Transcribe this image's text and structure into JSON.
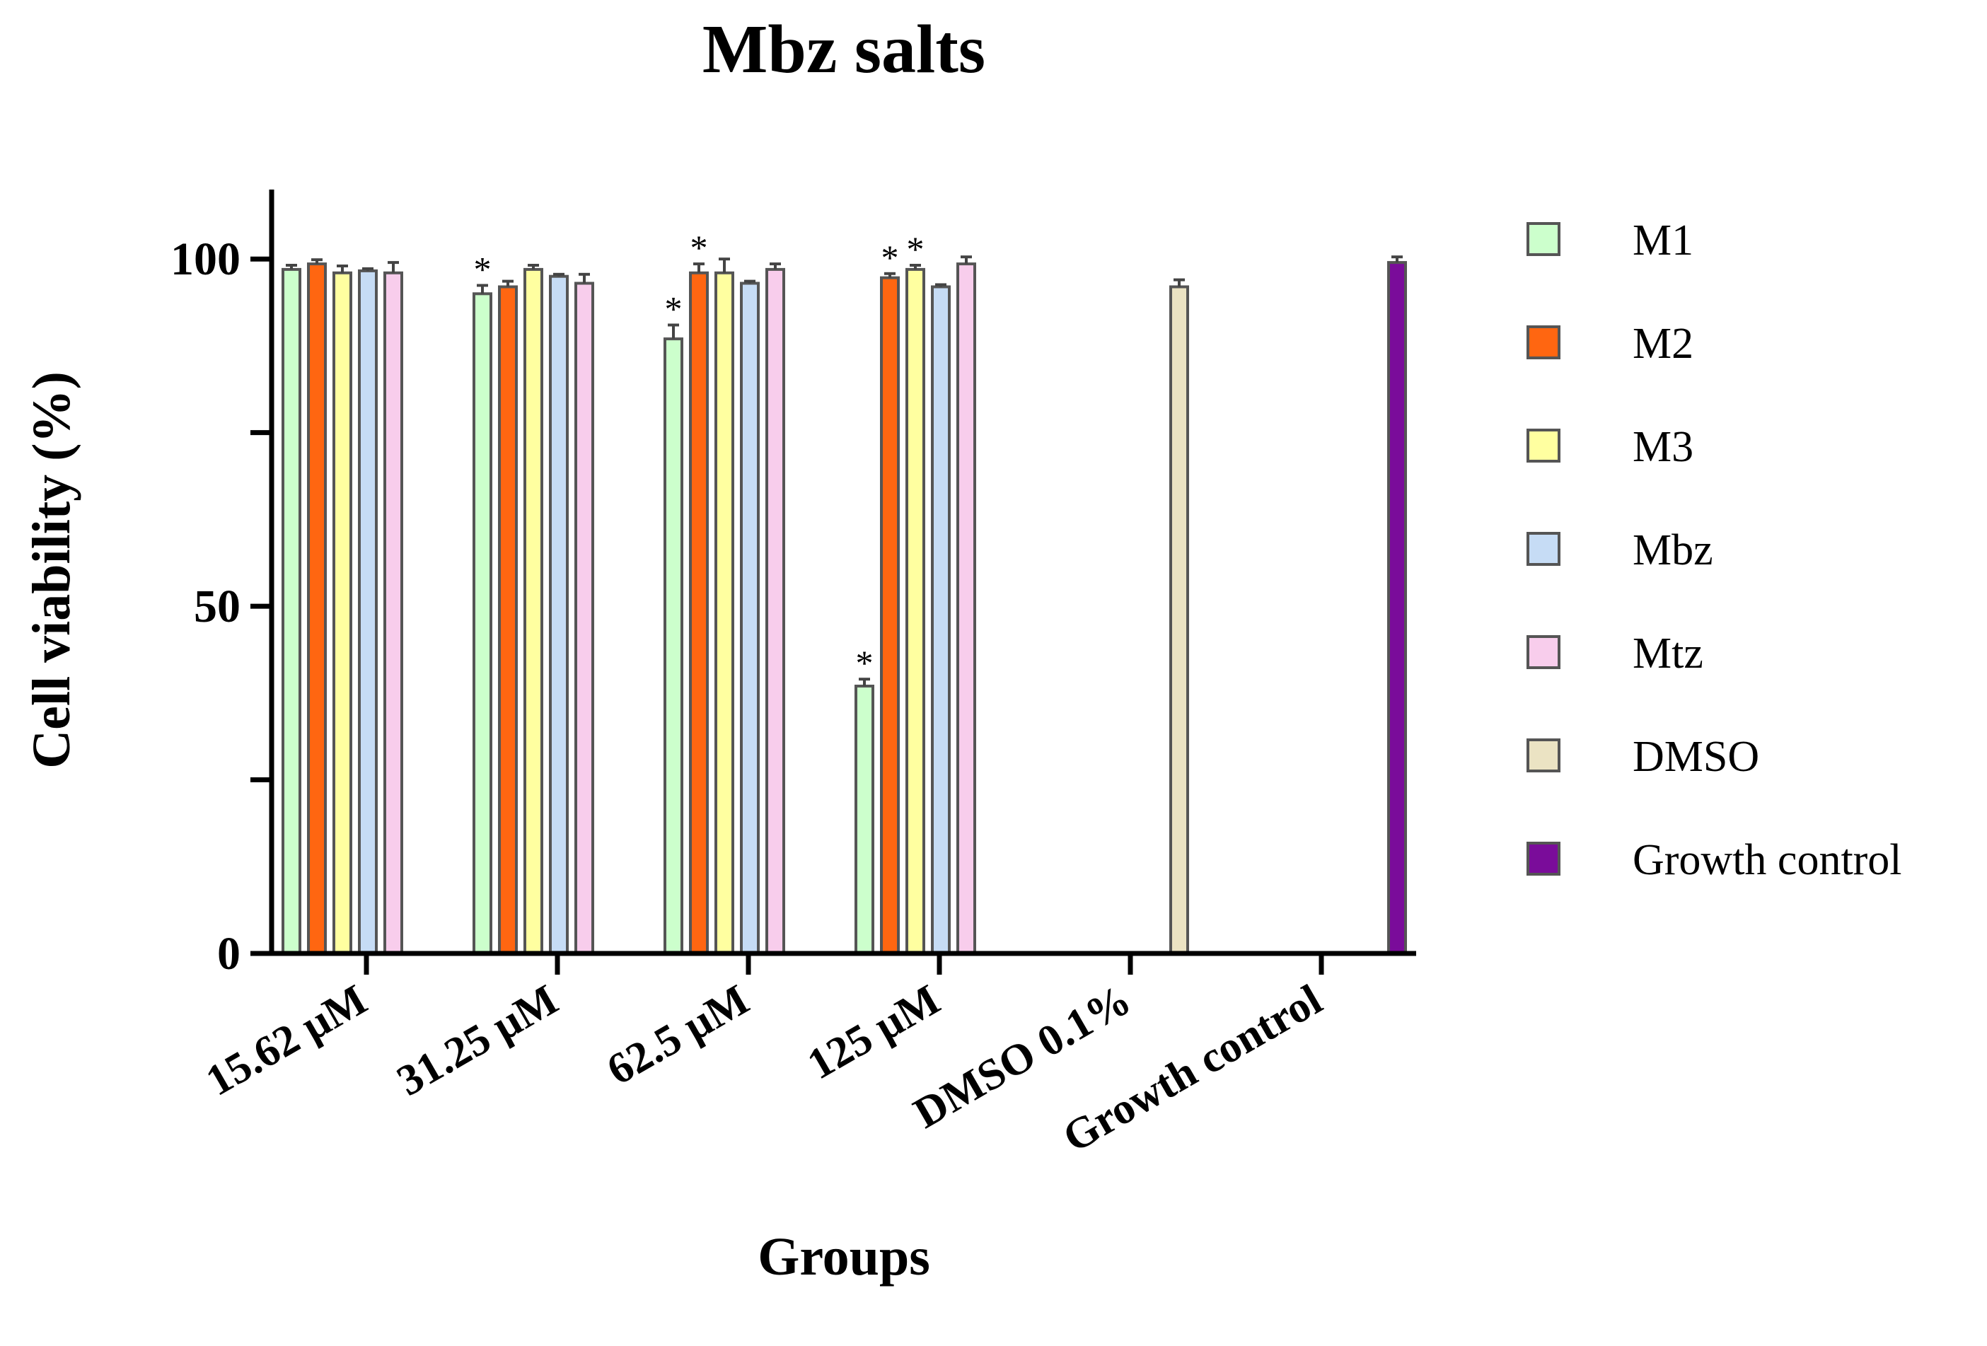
{
  "chart_data": {
    "type": "bar",
    "title": "Mbz salts",
    "xlabel": "Groups",
    "ylabel": "Cell viability (%)",
    "ylim": [
      0,
      110
    ],
    "yticks": [
      {
        "value": 0,
        "label": "0"
      },
      {
        "value": 25,
        "label": ""
      },
      {
        "value": 50,
        "label": "50"
      },
      {
        "value": 75,
        "label": ""
      },
      {
        "value": 100,
        "label": "100"
      }
    ],
    "categories": [
      "15.62 µM",
      "31.25 µM",
      "62.5 µM",
      "125 µM",
      "DMSO 0.1%",
      "Growth control"
    ],
    "series": [
      {
        "name": "M1",
        "color": "#ccffcc",
        "values": [
          98.5,
          95.0,
          88.5,
          38.5,
          null,
          null
        ],
        "errors": [
          0.6,
          1.2,
          2.0,
          1.0,
          null,
          null
        ],
        "significant": [
          false,
          true,
          true,
          true,
          false,
          false
        ]
      },
      {
        "name": "M2",
        "color": "#ff6611",
        "values": [
          99.3,
          96.0,
          98.0,
          97.3,
          null,
          null
        ],
        "errors": [
          0.6,
          0.8,
          1.3,
          0.6,
          null,
          null
        ],
        "significant": [
          false,
          false,
          true,
          true,
          false,
          false
        ]
      },
      {
        "name": "M3",
        "color": "#ffffa0",
        "values": [
          98.0,
          98.5,
          98.0,
          98.5,
          null,
          null
        ],
        "errors": [
          1.0,
          0.6,
          2.0,
          0.6,
          null,
          null
        ],
        "significant": [
          false,
          false,
          false,
          true,
          false,
          false
        ]
      },
      {
        "name": "Mbz",
        "color": "#c6dcf5",
        "values": [
          98.3,
          97.5,
          96.5,
          96.0,
          null,
          null
        ],
        "errors": [
          0.3,
          0.3,
          0.3,
          0.3,
          null,
          null
        ],
        "significant": [
          false,
          false,
          false,
          false,
          false,
          false
        ]
      },
      {
        "name": "Mtz",
        "color": "#f8cdec",
        "values": [
          98.0,
          96.5,
          98.5,
          99.3,
          null,
          null
        ],
        "errors": [
          1.5,
          1.3,
          0.8,
          1.0,
          null,
          null
        ],
        "significant": [
          false,
          false,
          false,
          false,
          false,
          false
        ]
      },
      {
        "name": "DMSO",
        "color": "#ebe3c3",
        "values": [
          null,
          null,
          null,
          null,
          96.0,
          null
        ],
        "errors": [
          null,
          null,
          null,
          null,
          1.0,
          null
        ],
        "significant": [
          false,
          false,
          false,
          false,
          false,
          false
        ]
      },
      {
        "name": "Growth control",
        "color": "#7a0c9a",
        "values": [
          null,
          null,
          null,
          null,
          null,
          99.5
        ],
        "errors": [
          null,
          null,
          null,
          null,
          null,
          0.8
        ],
        "significant": [
          false,
          false,
          false,
          false,
          false,
          false
        ]
      }
    ],
    "significance_marker": "*",
    "legend_position": "right"
  }
}
